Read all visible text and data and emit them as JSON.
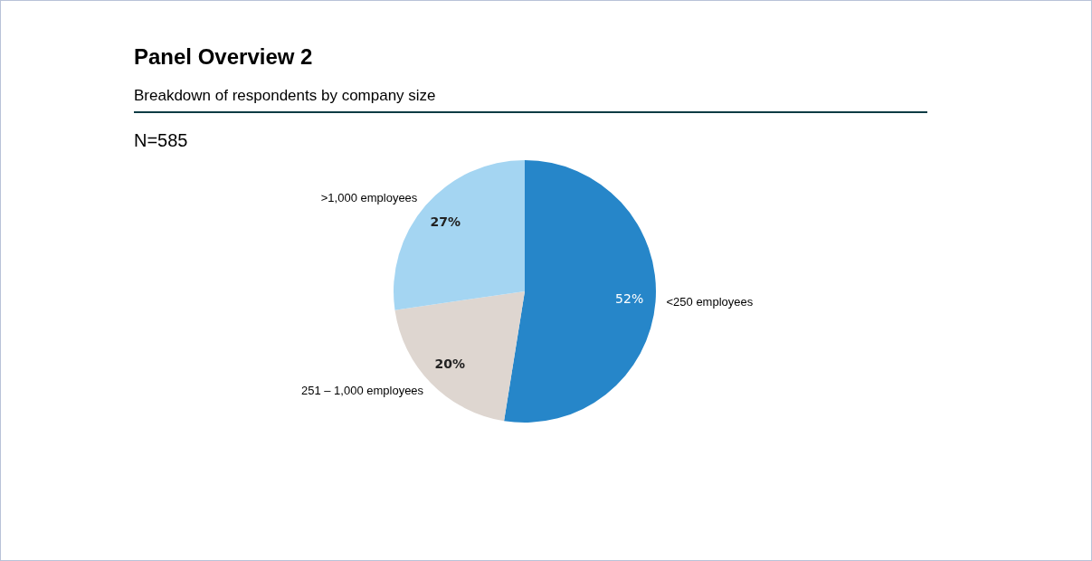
{
  "chart_data": {
    "type": "pie",
    "title": "Panel Overview 2",
    "subtitle": "Breakdown of respondents by company size",
    "annotations": [
      "N=585"
    ],
    "categories": [
      "<250 employees",
      "251 – 1,000 employees",
      ">1,000 employees"
    ],
    "values": [
      52,
      20,
      27
    ],
    "colors": [
      "#2686c9",
      "#ded6d0",
      "#a4d5f2"
    ],
    "value_labels": [
      "52%",
      "20%",
      "27%"
    ],
    "legend": false
  }
}
